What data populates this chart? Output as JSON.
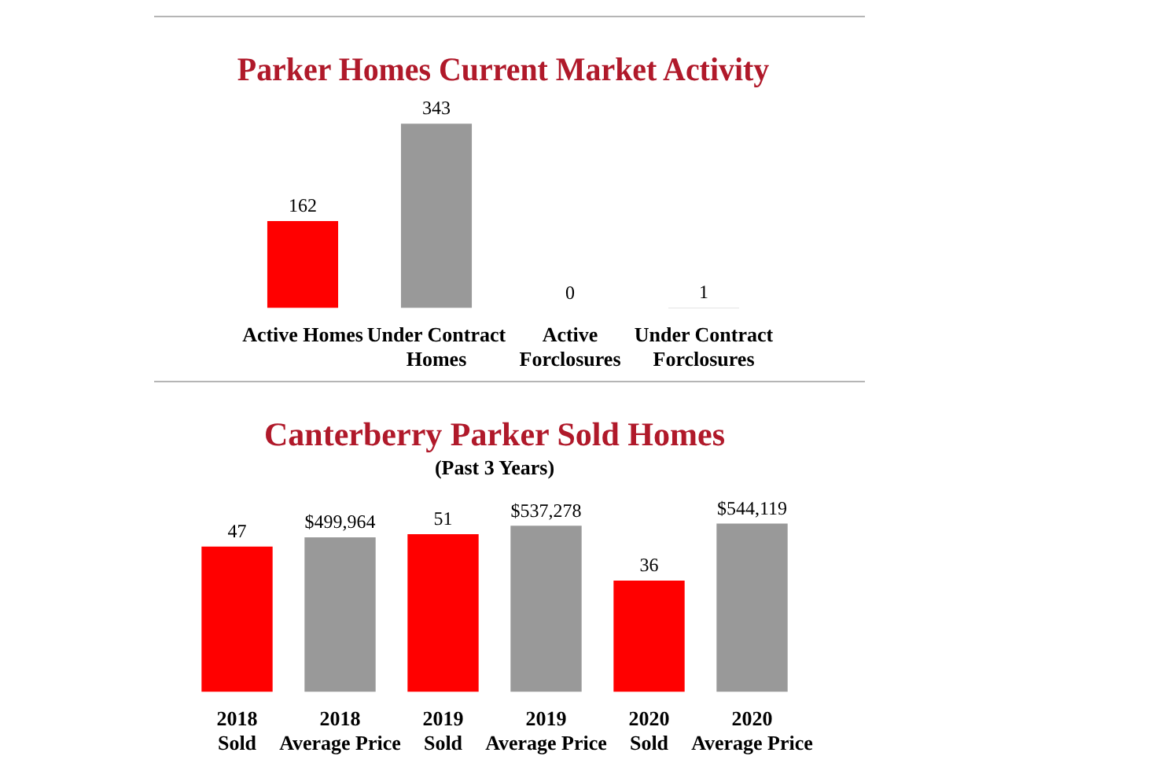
{
  "chart_data": [
    {
      "type": "bar",
      "title": "Parker Homes Current Market Activity",
      "categories": [
        "Active Homes",
        "Under Contract\nHomes",
        "Active\nForclosures",
        "Under Contract\nForclosures"
      ],
      "values": [
        162,
        343,
        0,
        1
      ],
      "colors": [
        "#ff0000",
        "#999999",
        "#999999",
        "#999999"
      ],
      "tick_labels": "x",
      "data_labels": true
    },
    {
      "type": "bar",
      "title": "Canterberry Parker Sold Homes",
      "subtitle": "(Past 3 Years)",
      "categories": [
        "2018\nSold",
        "2018\nAverage Price",
        "2019\nSold",
        "2019\nAverage Price",
        "2020\nSold",
        "2020\nAverage Price"
      ],
      "series": [
        {
          "color": "#ff0000",
          "values": [
            47,
            null,
            51,
            null,
            36,
            null
          ],
          "value_labels": [
            "47",
            null,
            "51",
            null,
            "36",
            null
          ]
        },
        {
          "color": "#999999",
          "axis": "y2",
          "values": [
            null,
            499964,
            null,
            537278,
            null,
            544119
          ],
          "value_labels": [
            null,
            "$499,964",
            null,
            "$537,278",
            null,
            "$544,119"
          ]
        }
      ],
      "tick_labels": "x"
    }
  ]
}
